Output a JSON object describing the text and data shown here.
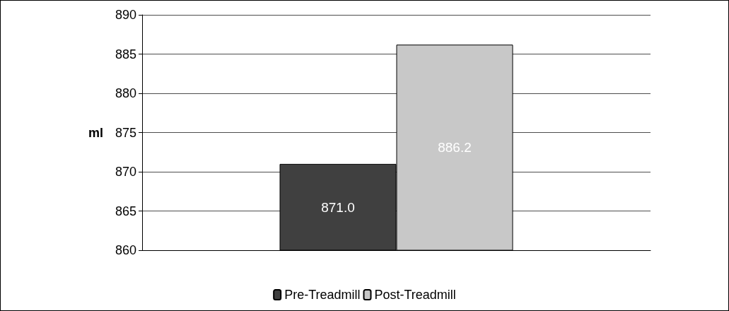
{
  "chart_data": {
    "type": "bar",
    "ylabel": "ml",
    "categories": [
      null
    ],
    "series": [
      {
        "name": "Pre-Treadmill",
        "color": "#404040",
        "values": [
          871.0
        ],
        "value_labels": [
          "871.0"
        ]
      },
      {
        "name": "Post-Treadmill",
        "color": "#c8c8c8",
        "values": [
          886.2
        ],
        "value_labels": [
          "886.2"
        ]
      }
    ],
    "ylim": [
      860,
      890
    ],
    "yticks": [
      860,
      865,
      870,
      875,
      880,
      885,
      890
    ],
    "grid": "y",
    "legend": "bottom"
  }
}
